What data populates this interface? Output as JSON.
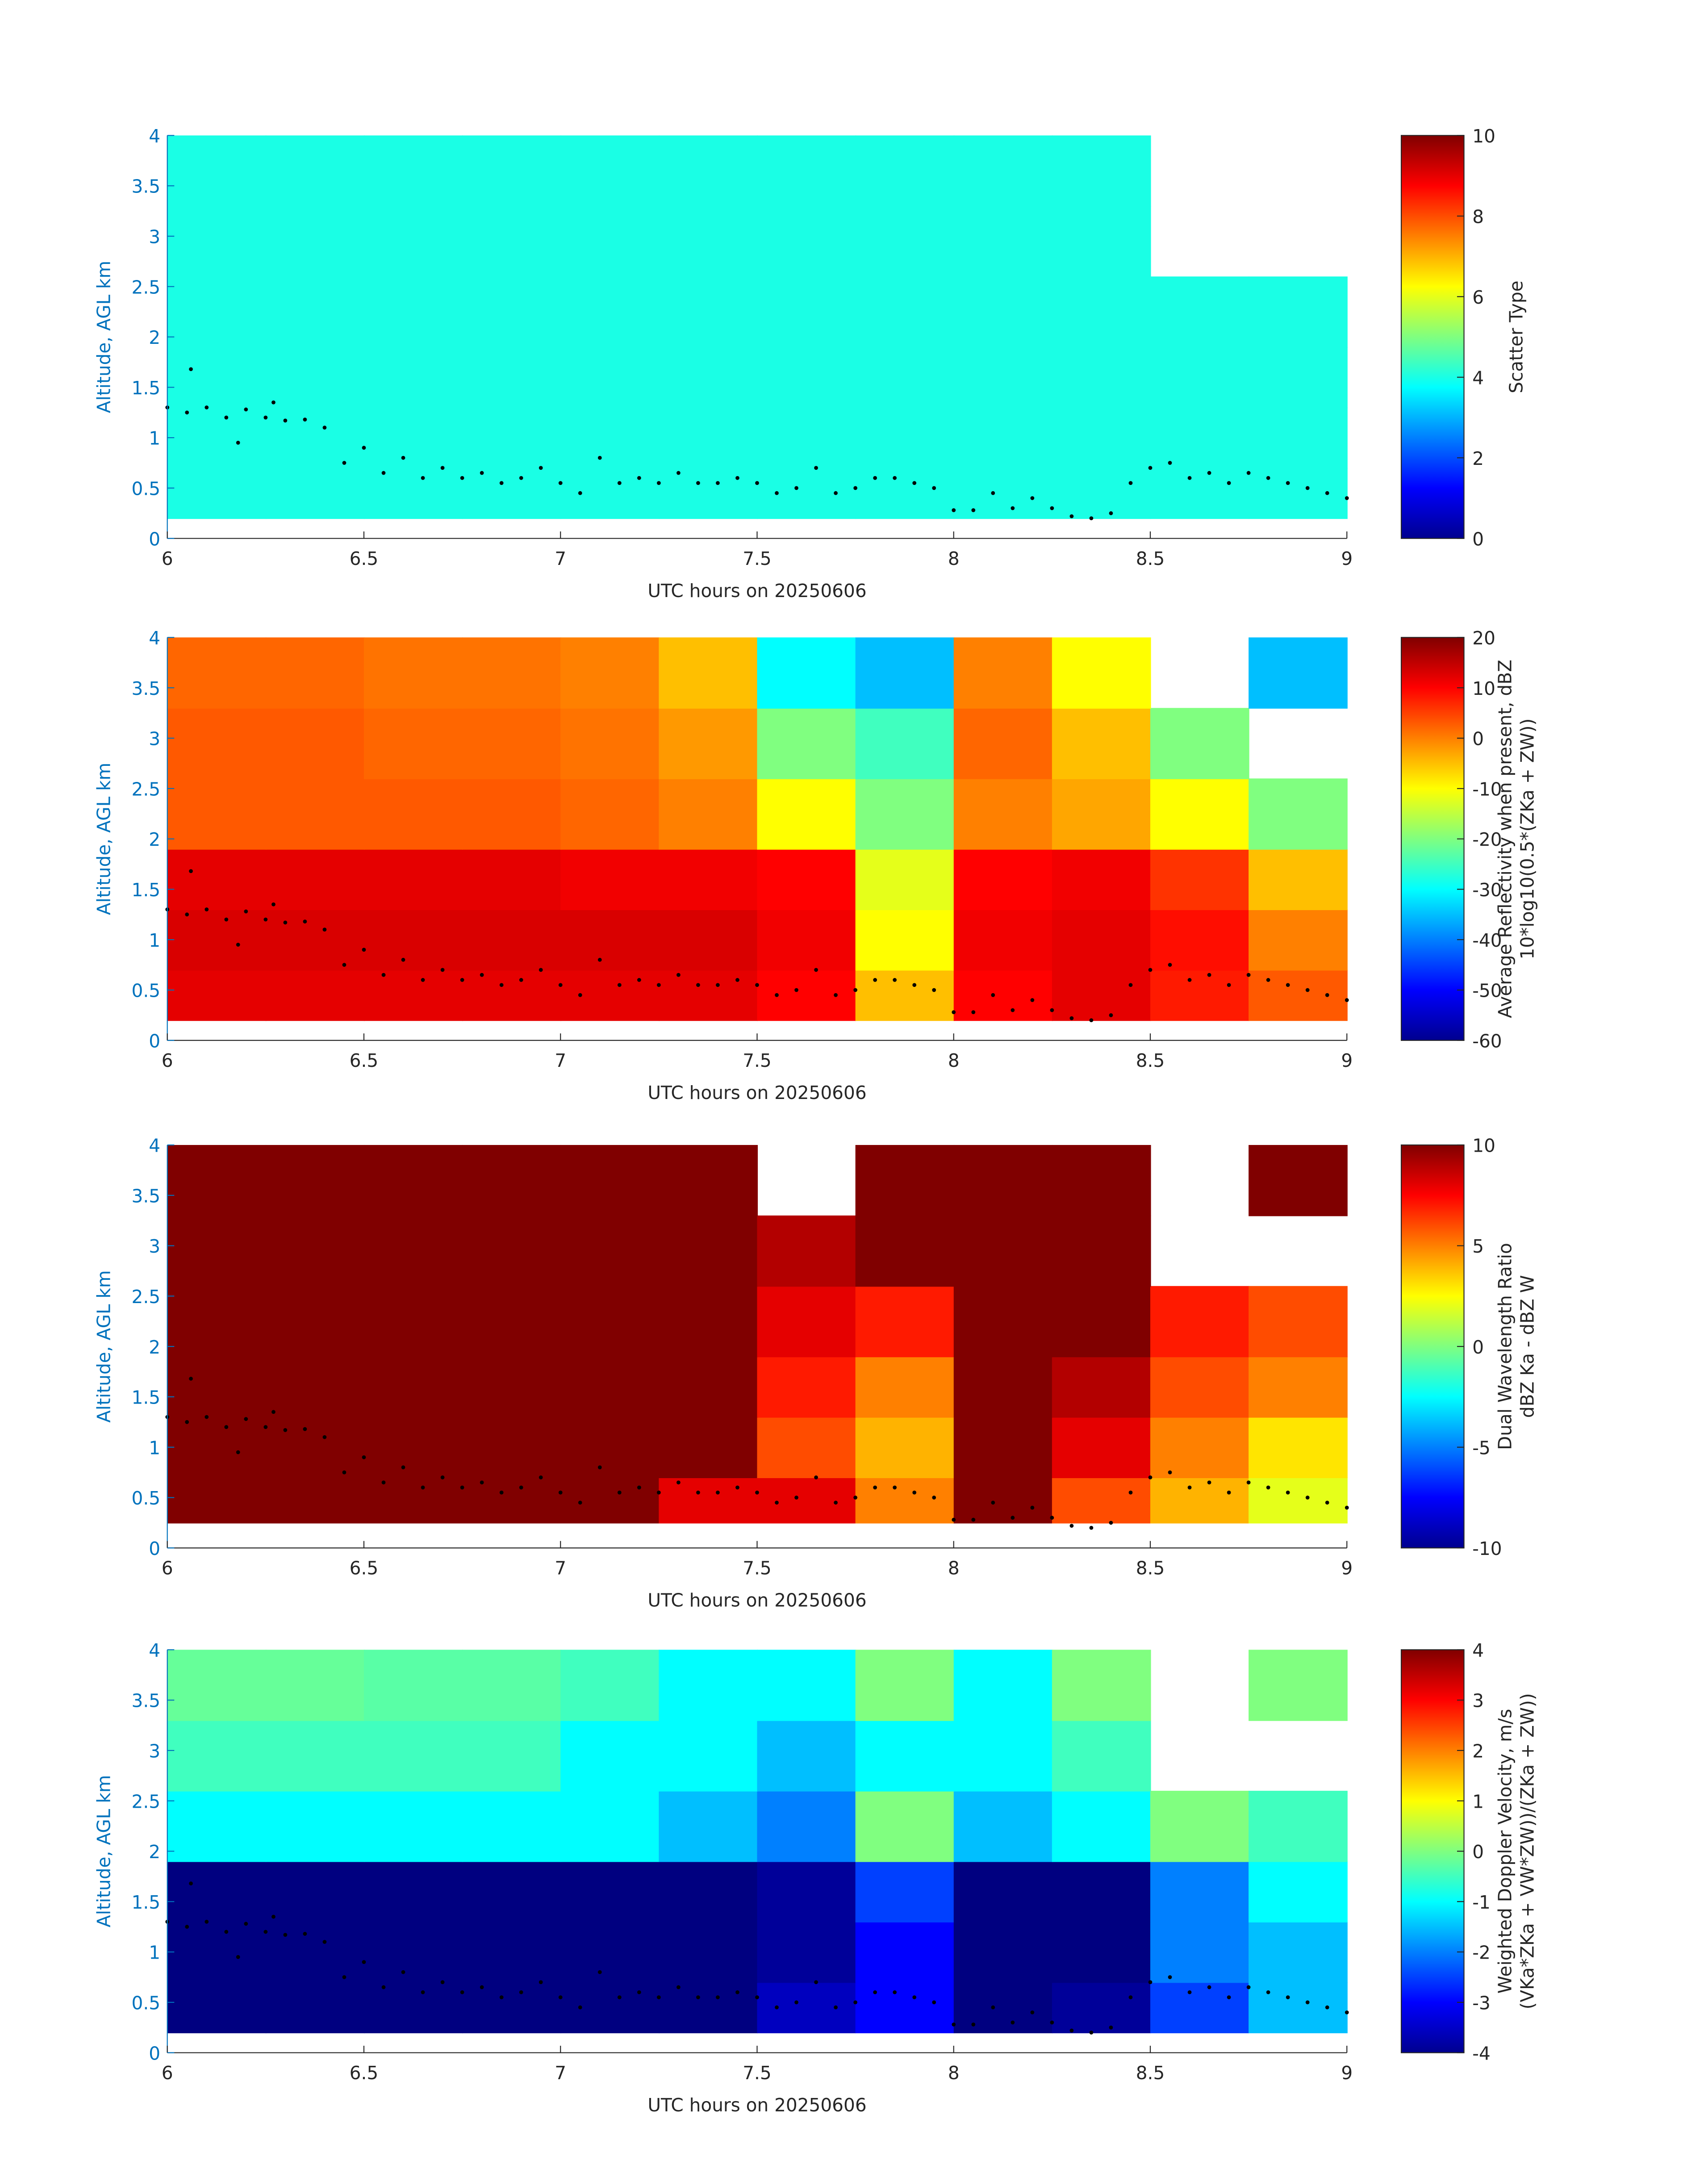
{
  "chart_data": [
    {
      "type": "heatmap",
      "xlabel": "UTC hours on 20250606",
      "ylabel": "Altitude, AGL km",
      "clabel": [
        "Scatter Type"
      ],
      "xlim": [
        6,
        9
      ],
      "ylim": [
        0,
        4
      ],
      "xticks": [
        6,
        6.5,
        7,
        7.5,
        8,
        8.5,
        9
      ],
      "yticks": [
        0,
        0.5,
        1,
        1.5,
        2,
        2.5,
        3,
        3.5,
        4
      ],
      "clim": [
        0,
        10
      ],
      "cticks": [
        0,
        2,
        4,
        6,
        8,
        10
      ],
      "xbins": [
        6,
        6.25,
        6.5,
        6.75,
        7,
        7.25,
        7.5,
        7.75,
        8,
        8.25,
        8.5,
        8.75,
        9
      ],
      "ybins": [
        0.2,
        0.7,
        1.3,
        1.9,
        2.6,
        3.3,
        4
      ],
      "z": [
        [
          4,
          4,
          4,
          4,
          4,
          4,
          4,
          4,
          4,
          4,
          4,
          4
        ],
        [
          4,
          4,
          4,
          4,
          4,
          4,
          4,
          4,
          4,
          4,
          4,
          4
        ],
        [
          4,
          4,
          4,
          4,
          4,
          4,
          4,
          4,
          4,
          4,
          4,
          4
        ],
        [
          4,
          4,
          4,
          4,
          4,
          4,
          4,
          4,
          4,
          4,
          4,
          4
        ],
        [
          4,
          4,
          4,
          4,
          4,
          4,
          4,
          4,
          4,
          4,
          null,
          null
        ],
        [
          4,
          4,
          4,
          4,
          4,
          4,
          4,
          4,
          4,
          4,
          null,
          null
        ]
      ],
      "points_x": [
        6.0,
        6.05,
        6.06,
        6.1,
        6.15,
        6.18,
        6.2,
        6.25,
        6.27,
        6.3,
        6.35,
        6.4,
        6.45,
        6.5,
        6.55,
        6.6,
        6.65,
        6.7,
        6.75,
        6.8,
        6.85,
        6.9,
        6.95,
        7.0,
        7.05,
        7.1,
        7.15,
        7.2,
        7.25,
        7.3,
        7.35,
        7.4,
        7.45,
        7.5,
        7.55,
        7.6,
        7.65,
        7.7,
        7.75,
        7.8,
        7.85,
        7.9,
        7.95,
        8.0,
        8.05,
        8.1,
        8.15,
        8.2,
        8.25,
        8.3,
        8.35,
        8.4,
        8.45,
        8.5,
        8.55,
        8.6,
        8.65,
        8.7,
        8.75,
        8.8,
        8.85,
        8.9,
        8.95,
        9.0
      ],
      "points_y": [
        1.3,
        1.25,
        1.68,
        1.3,
        1.2,
        0.95,
        1.28,
        1.2,
        1.35,
        1.17,
        1.18,
        1.1,
        0.75,
        0.9,
        0.65,
        0.8,
        0.6,
        0.7,
        0.6,
        0.65,
        0.55,
        0.6,
        0.7,
        0.55,
        0.45,
        0.8,
        0.55,
        0.6,
        0.55,
        0.65,
        0.55,
        0.55,
        0.6,
        0.55,
        0.45,
        0.5,
        0.7,
        0.45,
        0.5,
        0.6,
        0.6,
        0.55,
        0.5,
        0.28,
        0.28,
        0.45,
        0.3,
        0.4,
        0.3,
        0.22,
        0.2,
        0.25,
        0.55,
        0.7,
        0.75,
        0.6,
        0.65,
        0.55,
        0.65,
        0.6,
        0.55,
        0.5,
        0.45,
        0.4
      ]
    },
    {
      "type": "heatmap",
      "xlabel": "UTC hours on 20250606",
      "ylabel": "Altitude, AGL km",
      "clabel": [
        "Average Reflectivity when present, dBZ",
        "10*log10(0.5*(ZKa + ZW))"
      ],
      "xlim": [
        6,
        9
      ],
      "ylim": [
        0,
        4
      ],
      "xticks": [
        6,
        6.5,
        7,
        7.5,
        8,
        8.5,
        9
      ],
      "yticks": [
        0,
        0.5,
        1,
        1.5,
        2,
        2.5,
        3,
        3.5,
        4
      ],
      "clim": [
        -60,
        20
      ],
      "cticks": [
        -60,
        -50,
        -40,
        -30,
        -20,
        -10,
        0,
        10,
        20
      ],
      "xbins": [
        6,
        6.25,
        6.5,
        6.75,
        7,
        7.25,
        7.5,
        7.75,
        8,
        8.25,
        8.5,
        8.75,
        9
      ],
      "ybins": [
        0.2,
        0.7,
        1.3,
        1.9,
        2.6,
        3.3,
        4
      ],
      "z": [
        [
          12,
          12,
          12,
          12,
          12,
          12,
          10,
          -5,
          10,
          12,
          8,
          3
        ],
        [
          13,
          13,
          13,
          13,
          13,
          13,
          11,
          -10,
          11,
          12,
          9,
          0
        ],
        [
          12,
          12,
          12,
          12,
          11,
          11,
          10,
          -12,
          10,
          11,
          6,
          -5
        ],
        [
          3,
          3,
          3,
          3,
          2,
          0,
          -10,
          -20,
          0,
          -3,
          -10,
          -20
        ],
        [
          3,
          3,
          2,
          2,
          1,
          -2,
          -20,
          -25,
          2,
          -5,
          -20,
          null
        ],
        [
          2,
          2,
          1,
          1,
          0,
          -5,
          -30,
          -35,
          0,
          -10,
          null,
          -35
        ]
      ]
    },
    {
      "type": "heatmap",
      "xlabel": "UTC hours on 20250606",
      "ylabel": "Altitude, AGL km",
      "clabel": [
        "Dual Wavelength Ratio",
        "dBZ Ka - dBZ W"
      ],
      "xlim": [
        6,
        9
      ],
      "ylim": [
        0,
        4
      ],
      "xticks": [
        6,
        6.5,
        7,
        7.5,
        8,
        8.5,
        9
      ],
      "yticks": [
        0,
        0.5,
        1,
        1.5,
        2,
        2.5,
        3,
        3.5,
        4
      ],
      "clim": [
        -10,
        10
      ],
      "cticks": [
        -10,
        -5,
        0,
        5,
        10
      ],
      "xbins": [
        6,
        6.25,
        6.5,
        6.75,
        7,
        7.25,
        7.5,
        7.75,
        8,
        8.25,
        8.5,
        8.75,
        9
      ],
      "ybins": [
        0.25,
        0.7,
        1.3,
        1.9,
        2.6,
        3.3,
        4
      ],
      "z": [
        [
          10,
          10,
          10,
          10,
          10,
          8,
          8,
          5,
          10,
          6,
          4,
          2
        ],
        [
          10,
          10,
          10,
          10,
          10,
          10,
          6,
          4,
          10,
          8,
          5,
          3
        ],
        [
          10,
          10,
          10,
          10,
          10,
          10,
          7,
          5,
          10,
          9,
          6,
          5
        ],
        [
          10,
          10,
          10,
          10,
          10,
          10,
          8,
          7,
          10,
          10,
          7,
          6
        ],
        [
          10,
          10,
          10,
          10,
          10,
          10,
          9,
          10,
          10,
          10,
          null,
          null
        ],
        [
          10,
          10,
          10,
          10,
          10,
          10,
          null,
          10,
          10,
          10,
          null,
          10
        ]
      ]
    },
    {
      "type": "heatmap",
      "xlabel": "UTC hours on 20250606",
      "ylabel": "Altitude, AGL km",
      "clabel": [
        "Weighted Doppler Velocity, m/s",
        "(VKa*ZKa + VW*ZW))/(ZKa + ZW))"
      ],
      "xlim": [
        6,
        9
      ],
      "ylim": [
        0,
        4
      ],
      "xticks": [
        6,
        6.5,
        7,
        7.5,
        8,
        8.5,
        9
      ],
      "yticks": [
        0,
        0.5,
        1,
        1.5,
        2,
        2.5,
        3,
        3.5,
        4
      ],
      "clim": [
        -4,
        4
      ],
      "cticks": [
        -4,
        -3,
        -2,
        -1,
        0,
        1,
        2,
        3,
        4
      ],
      "xbins": [
        6,
        6.25,
        6.5,
        6.75,
        7,
        7.25,
        7.5,
        7.75,
        8,
        8.25,
        8.5,
        8.75,
        9
      ],
      "ybins": [
        0.2,
        0.7,
        1.3,
        1.9,
        2.6,
        3.3,
        4
      ],
      "z": [
        [
          -4,
          -4,
          -4,
          -4,
          -4,
          -4,
          -3.5,
          -3,
          -4,
          -3.8,
          -2.5,
          -1.5
        ],
        [
          -4,
          -4,
          -4,
          -4,
          -4,
          -4,
          -3.8,
          -3,
          -4,
          -4,
          -2,
          -1.5
        ],
        [
          -4,
          -4,
          -4,
          -4,
          -4,
          -4,
          -3.8,
          -2.5,
          -4,
          -4,
          -2,
          -1
        ],
        [
          -1,
          -1,
          -1,
          -1,
          -1,
          -1.5,
          -2,
          0,
          -1.5,
          -1,
          0,
          -0.5
        ],
        [
          -0.5,
          -0.5,
          -0.5,
          -0.5,
          -1,
          -1,
          -1.5,
          -1,
          -1,
          -0.5,
          null,
          null
        ],
        [
          -0.2,
          -0.2,
          -0.3,
          -0.3,
          -0.5,
          -1,
          -1,
          0,
          -1,
          0,
          null,
          0
        ]
      ]
    }
  ]
}
